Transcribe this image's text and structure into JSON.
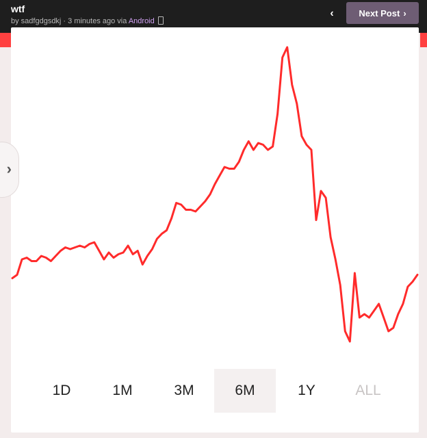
{
  "header": {
    "title": "wtf",
    "meta": "by sadfgdgsdkj · 3 minutes ago via ",
    "platform": "Android",
    "next_label": "Next Post"
  },
  "colors": {
    "line": "#ff2b2b",
    "accent": "#ff4040",
    "topbar": "#1e1e1e",
    "button": "#6e5d74"
  },
  "range_tabs": [
    {
      "label": "1D",
      "selected": false,
      "disabled": false
    },
    {
      "label": "1M",
      "selected": false,
      "disabled": false
    },
    {
      "label": "3M",
      "selected": false,
      "disabled": false
    },
    {
      "label": "6M",
      "selected": true,
      "disabled": false
    },
    {
      "label": "1Y",
      "selected": false,
      "disabled": false
    },
    {
      "label": "ALL",
      "selected": false,
      "disabled": true
    }
  ],
  "chart_data": {
    "type": "line",
    "title": "",
    "xlabel": "",
    "ylabel": "",
    "grid": false,
    "series": [
      {
        "values": [
          0.41,
          0.43,
          0.52,
          0.53,
          0.51,
          0.51,
          0.54,
          0.53,
          0.51,
          0.54,
          0.57,
          0.59,
          0.58,
          0.59,
          0.6,
          0.59,
          0.61,
          0.62,
          0.57,
          0.52,
          0.56,
          0.53,
          0.55,
          0.56,
          0.6,
          0.55,
          0.57,
          0.49,
          0.54,
          0.58,
          0.64,
          0.67,
          0.69,
          0.76,
          0.85,
          0.84,
          0.81,
          0.81,
          0.8,
          0.83,
          0.86,
          0.9,
          0.96,
          1.01,
          1.06,
          1.05,
          1.05,
          1.09,
          1.16,
          1.21,
          1.16,
          1.2,
          1.19,
          1.16,
          1.18,
          1.37,
          1.7,
          1.76,
          1.54,
          1.43,
          1.24,
          1.19,
          1.16,
          0.75,
          0.92,
          0.88,
          0.65,
          0.52,
          0.37,
          0.1,
          0.04,
          0.44,
          0.18,
          0.2,
          0.18,
          0.22,
          0.26,
          0.18,
          0.1,
          0.12,
          0.2,
          0.26,
          0.36,
          0.39,
          0.43
        ]
      }
    ]
  }
}
